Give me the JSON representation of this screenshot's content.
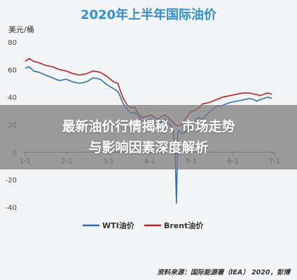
{
  "banner": {
    "line1": "最新油价行情揭秘，市场走势",
    "line2": "与影响因素深度解析"
  },
  "source": "资料来源：国际能源署（IEA） 2020，彭博",
  "chart_data": {
    "type": "line",
    "title": "2020年上半年国际油价",
    "unit_label": "美元/桶",
    "xlabel": "",
    "ylabel": "",
    "x_ticks": [
      "1-1",
      "2-1",
      "3-1",
      "4-1",
      "5-1",
      "6-1",
      "7-1"
    ],
    "y_ticks": [
      -40,
      -20,
      0,
      20,
      40,
      60,
      80
    ],
    "xlim": [
      0,
      183
    ],
    "ylim": [
      -40,
      80
    ],
    "legend_position": "bottom",
    "grid": false,
    "series": [
      {
        "name": "WTI油价",
        "color": "#2e6fb0",
        "x": [
          0,
          3,
          6,
          10,
          15,
          20,
          25,
          30,
          35,
          40,
          45,
          50,
          55,
          60,
          65,
          68,
          70,
          72,
          75,
          78,
          80,
          83,
          86,
          89,
          92,
          95,
          98,
          100,
          102,
          105,
          108,
          109,
          110,
          111,
          112,
          113,
          115,
          118,
          121,
          124,
          127,
          130,
          135,
          140,
          145,
          150,
          155,
          160,
          165,
          168,
          170,
          172,
          175,
          178,
          181
        ],
        "values": [
          61,
          62,
          59,
          58,
          56,
          54,
          52,
          53,
          51,
          50,
          51,
          54,
          53,
          49,
          46,
          44,
          40,
          35,
          31,
          28,
          29,
          26,
          22,
          23,
          24,
          21,
          20,
          22,
          24,
          21,
          18,
          12,
          0,
          -37,
          14,
          16,
          13,
          15,
          18,
          22,
          25,
          24,
          29,
          33,
          34,
          36,
          37,
          38,
          39,
          38,
          37,
          38,
          39,
          40,
          39
        ]
      },
      {
        "name": "Brent油价",
        "color": "#b3242d",
        "x": [
          0,
          3,
          6,
          10,
          15,
          20,
          25,
          30,
          35,
          40,
          45,
          50,
          55,
          60,
          65,
          68,
          70,
          72,
          75,
          78,
          80,
          83,
          86,
          89,
          92,
          95,
          98,
          100,
          102,
          105,
          108,
          110,
          112,
          115,
          118,
          121,
          124,
          127,
          130,
          135,
          140,
          145,
          150,
          155,
          160,
          165,
          168,
          170,
          172,
          175,
          178,
          181
        ],
        "values": [
          66,
          68,
          66,
          65,
          63,
          62,
          60,
          59,
          57,
          56,
          57,
          59,
          58,
          55,
          51,
          50,
          44,
          39,
          34,
          32,
          33,
          28,
          25,
          26,
          27,
          25,
          24,
          26,
          27,
          25,
          22,
          20,
          19,
          20,
          25,
          29,
          30,
          32,
          35,
          36,
          38,
          40,
          41,
          42,
          43,
          43,
          42,
          42,
          41,
          42,
          43,
          42
        ]
      }
    ]
  }
}
